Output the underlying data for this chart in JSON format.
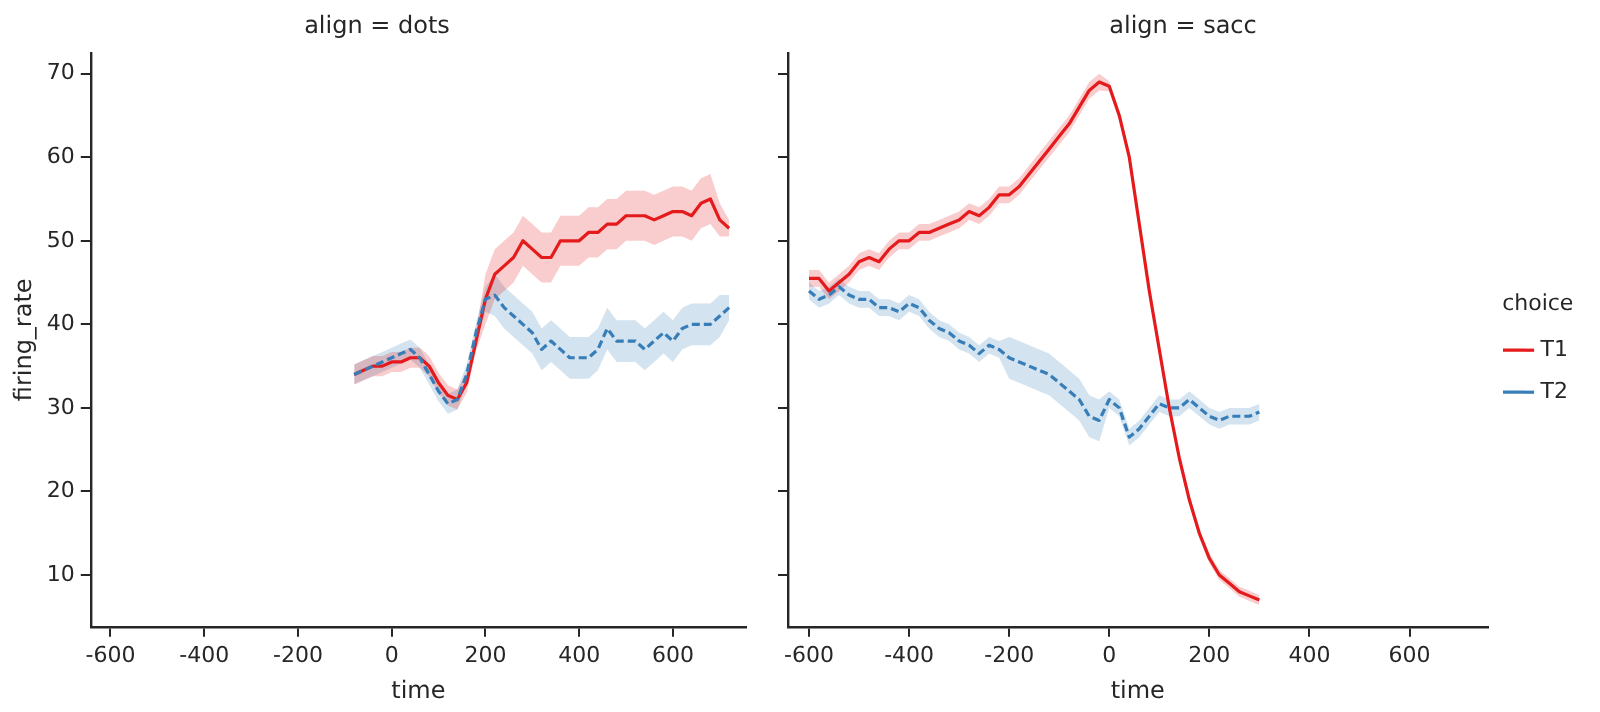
{
  "chart_data": [
    {
      "type": "line",
      "title": "align = dots",
      "xlabel": "time",
      "ylabel": "firing_rate",
      "xlim": [
        -642,
        756
      ],
      "xticks": [
        -600,
        -400,
        -200,
        0,
        200,
        400,
        600
      ],
      "ylim": [
        3.8,
        72.5
      ],
      "yticks": [
        10,
        20,
        30,
        40,
        50,
        60,
        70
      ],
      "grid": false,
      "legend": false,
      "marker": "none",
      "x": [
        -80,
        -60,
        -40,
        -20,
        0,
        20,
        40,
        60,
        80,
        100,
        120,
        140,
        160,
        180,
        200,
        220,
        240,
        260,
        280,
        300,
        320,
        340,
        360,
        380,
        400,
        420,
        440,
        460,
        480,
        500,
        520,
        540,
        560,
        580,
        600,
        620,
        640,
        660,
        680,
        700,
        720
      ],
      "series": [
        {
          "color": "#e41a1c",
          "line_style": "solid",
          "values": [
            34,
            34.5,
            35,
            35,
            35.5,
            35.5,
            36,
            36,
            35,
            33,
            31.5,
            31,
            33,
            38,
            43,
            46,
            47,
            48,
            50,
            49,
            48,
            48,
            50,
            50,
            50,
            51,
            51,
            52,
            52,
            53,
            53,
            53,
            52.5,
            53,
            53.5,
            53.5,
            53,
            54.5,
            55,
            52.5,
            51.5
          ],
          "lower": [
            32.8,
            33.3,
            33.8,
            33.8,
            34.3,
            34.3,
            34.8,
            34.8,
            33.8,
            31.8,
            30.3,
            29.8,
            31.8,
            36.8,
            40,
            43,
            44,
            45,
            47,
            46,
            45,
            45,
            47,
            47,
            47,
            48,
            48,
            49,
            49,
            50,
            50,
            50,
            49.5,
            50,
            50.5,
            50.5,
            50,
            51.5,
            52,
            50.5,
            50.5
          ],
          "upper": [
            35.2,
            35.7,
            36.2,
            36.2,
            36.7,
            36.7,
            37.2,
            37.2,
            36.2,
            34.2,
            32.7,
            32.2,
            34.2,
            39.2,
            46,
            49,
            50,
            51,
            53,
            52,
            51,
            51,
            53,
            53,
            53,
            54,
            54,
            55,
            55,
            56,
            56,
            56,
            55.5,
            56,
            56.5,
            56.5,
            56,
            57.5,
            58,
            54.5,
            52.5
          ]
        },
        {
          "color": "#377eb8",
          "line_style": "dashed",
          "values": [
            34,
            34.5,
            35,
            35.5,
            36,
            36.5,
            37,
            36,
            34,
            32,
            30.5,
            31,
            34,
            39,
            43,
            43.5,
            42,
            41,
            40,
            39,
            37,
            38,
            37,
            36,
            36,
            36,
            37,
            39.5,
            38,
            38,
            38,
            37,
            38,
            39,
            38,
            39.5,
            40,
            40,
            40,
            41,
            42
          ],
          "lower": [
            32.8,
            33.3,
            33.8,
            34.3,
            34.8,
            35.3,
            35.8,
            34.8,
            32.8,
            30.8,
            29.3,
            29.8,
            32.8,
            37.8,
            41.5,
            41,
            39.5,
            38.5,
            37.5,
            36.5,
            34.5,
            35.5,
            34.5,
            33.5,
            33.5,
            33.5,
            34.5,
            37,
            35.5,
            35.5,
            35.5,
            34.5,
            35.5,
            36.5,
            35.5,
            37,
            37.5,
            37.5,
            37.5,
            38.5,
            40.5
          ],
          "upper": [
            35.2,
            35.7,
            36.2,
            36.7,
            37.2,
            37.7,
            38.2,
            37.2,
            35.2,
            33.2,
            31.7,
            32.2,
            35.2,
            40.2,
            44.5,
            46,
            44.5,
            43.5,
            42.5,
            41.5,
            39.5,
            40.5,
            39.5,
            38.5,
            38.5,
            38.5,
            39.5,
            42,
            40.5,
            40.5,
            40.5,
            39.5,
            40.5,
            41.5,
            40.5,
            42,
            42.5,
            42.5,
            42.5,
            43.5,
            43.5
          ]
        }
      ]
    },
    {
      "type": "line",
      "title": "align = sacc",
      "xlabel": "time",
      "legend_title": "choice",
      "xlim": [
        -642,
        756
      ],
      "xticks": [
        -600,
        -400,
        -200,
        0,
        200,
        400,
        600
      ],
      "ylim": [
        3.8,
        72.5
      ],
      "yticks": [
        10,
        20,
        30,
        40,
        50,
        60,
        70
      ],
      "tick_labels": "x",
      "grid": false,
      "legend": "right",
      "marker": "none",
      "x": [
        -600,
        -580,
        -560,
        -540,
        -520,
        -500,
        -480,
        -460,
        -440,
        -420,
        -400,
        -380,
        -360,
        -340,
        -320,
        -300,
        -280,
        -260,
        -240,
        -220,
        -200,
        -180,
        -160,
        -140,
        -120,
        -100,
        -80,
        -60,
        -40,
        -20,
        0,
        20,
        40,
        60,
        80,
        100,
        120,
        140,
        160,
        180,
        200,
        220,
        240,
        260,
        280,
        300
      ],
      "series": [
        {
          "name": "T1",
          "color": "#e41a1c",
          "line_style": "solid",
          "values": [
            45.5,
            45.5,
            44,
            45,
            46,
            47.5,
            48,
            47.5,
            49,
            50,
            50,
            51,
            51,
            51.5,
            52,
            52.5,
            53.5,
            53,
            54,
            55.5,
            55.5,
            56.5,
            58,
            59.5,
            61,
            62.5,
            64,
            66,
            68,
            69,
            68.5,
            65,
            60,
            52,
            44,
            37,
            30,
            24,
            19,
            15,
            12,
            10,
            9,
            8,
            7.5,
            7
          ],
          "lower": [
            44.5,
            44.5,
            43,
            44,
            45,
            46.5,
            47,
            46.5,
            48,
            49,
            49,
            50,
            50,
            50.5,
            51,
            51.5,
            52.5,
            52,
            53,
            54.5,
            54.5,
            55.5,
            57,
            58.5,
            60,
            61.5,
            63,
            65,
            67,
            68,
            67.9,
            64.4,
            59.4,
            51.4,
            43.4,
            36.4,
            29.4,
            23.4,
            18.4,
            14.4,
            11.4,
            9.4,
            8.4,
            7.4,
            6.9,
            6.4
          ],
          "upper": [
            46.5,
            46.5,
            45,
            46,
            47,
            48.5,
            49,
            48.5,
            50,
            51,
            51,
            52,
            52,
            52.5,
            53,
            53.5,
            54.5,
            54,
            55,
            56.5,
            56.5,
            57.5,
            59,
            60.5,
            62,
            63.5,
            65,
            67,
            69,
            70,
            69.1,
            65.6,
            60.6,
            52.6,
            44.6,
            37.6,
            30.6,
            24.6,
            19.6,
            15.6,
            12.6,
            10.6,
            9.6,
            8.6,
            8.1,
            7.6
          ]
        },
        {
          "name": "T2",
          "color": "#377eb8",
          "line_style": "dashed",
          "values": [
            44,
            43,
            43.5,
            44.5,
            43.5,
            43,
            43,
            42,
            42,
            41.5,
            42.5,
            42,
            40.5,
            39.5,
            39,
            38,
            37.5,
            36.5,
            37.5,
            37,
            36,
            35.5,
            35,
            34.5,
            34,
            33,
            32,
            31,
            29,
            28.5,
            31,
            30,
            26.5,
            27.5,
            29,
            30.5,
            30,
            30,
            31,
            30,
            29,
            28.5,
            29,
            29,
            29,
            29.5
          ],
          "lower": [
            43,
            42,
            42.5,
            43.5,
            42.5,
            42,
            42,
            41,
            41,
            40.5,
            41.5,
            41,
            39.5,
            38.5,
            38,
            37,
            36.5,
            35.5,
            36.5,
            36,
            33.5,
            33,
            32.5,
            32,
            31.5,
            30.5,
            29.5,
            28.5,
            26.5,
            26,
            30,
            29,
            25.5,
            26.5,
            28,
            29.5,
            29,
            29,
            30,
            29,
            28,
            27.5,
            28,
            28,
            28,
            28.5
          ],
          "upper": [
            45,
            44,
            44.5,
            45.5,
            44.5,
            44,
            44,
            43,
            43,
            42.5,
            43.5,
            43,
            41.5,
            40.5,
            40,
            39,
            38.5,
            37.5,
            38.5,
            38,
            38.5,
            38,
            37.5,
            37,
            36.5,
            35.5,
            34.5,
            33.5,
            31.5,
            31,
            32,
            31,
            27.5,
            28.5,
            30,
            31.5,
            31,
            31,
            32,
            31,
            30,
            29.5,
            30,
            30,
            30,
            30.5
          ]
        }
      ]
    }
  ]
}
